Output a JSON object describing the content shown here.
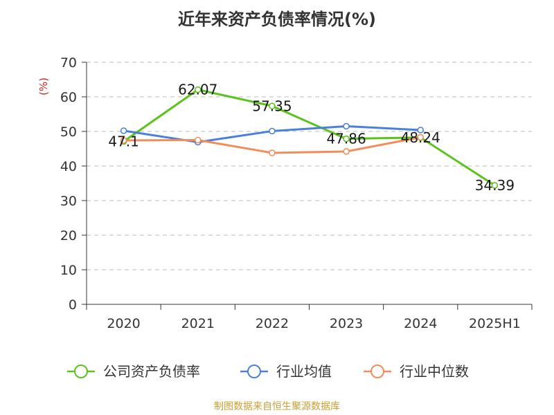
{
  "chart_data": {
    "type": "line",
    "title": "近年来资产负债率情况(%)",
    "ylabel": "(%)",
    "xlabel": "",
    "ylim": [
      0,
      70
    ],
    "yticks": [
      0,
      10,
      20,
      30,
      40,
      50,
      60,
      70
    ],
    "categories": [
      "2020",
      "2021",
      "2022",
      "2023",
      "2024",
      "2025H1"
    ],
    "grid": "horizontal-dashed",
    "legend_position": "bottom",
    "series": [
      {
        "name": "公司资产负债率",
        "color": "#5cc21c",
        "values": [
          47.1,
          62.07,
          57.35,
          47.86,
          48.24,
          34.39
        ],
        "labels": [
          "47.1",
          "62.07",
          "57.35",
          "47.86",
          "48.24",
          "34.39"
        ]
      },
      {
        "name": "行业均值",
        "color": "#4a7fdb",
        "values": [
          50.2,
          46.9,
          50.1,
          51.5,
          50.4,
          null
        ]
      },
      {
        "name": "行业中位数",
        "color": "#f28c5a",
        "values": [
          47.4,
          47.5,
          43.8,
          44.2,
          48.3,
          null
        ]
      }
    ]
  },
  "source": "制图数据来自恒生聚源数据库"
}
